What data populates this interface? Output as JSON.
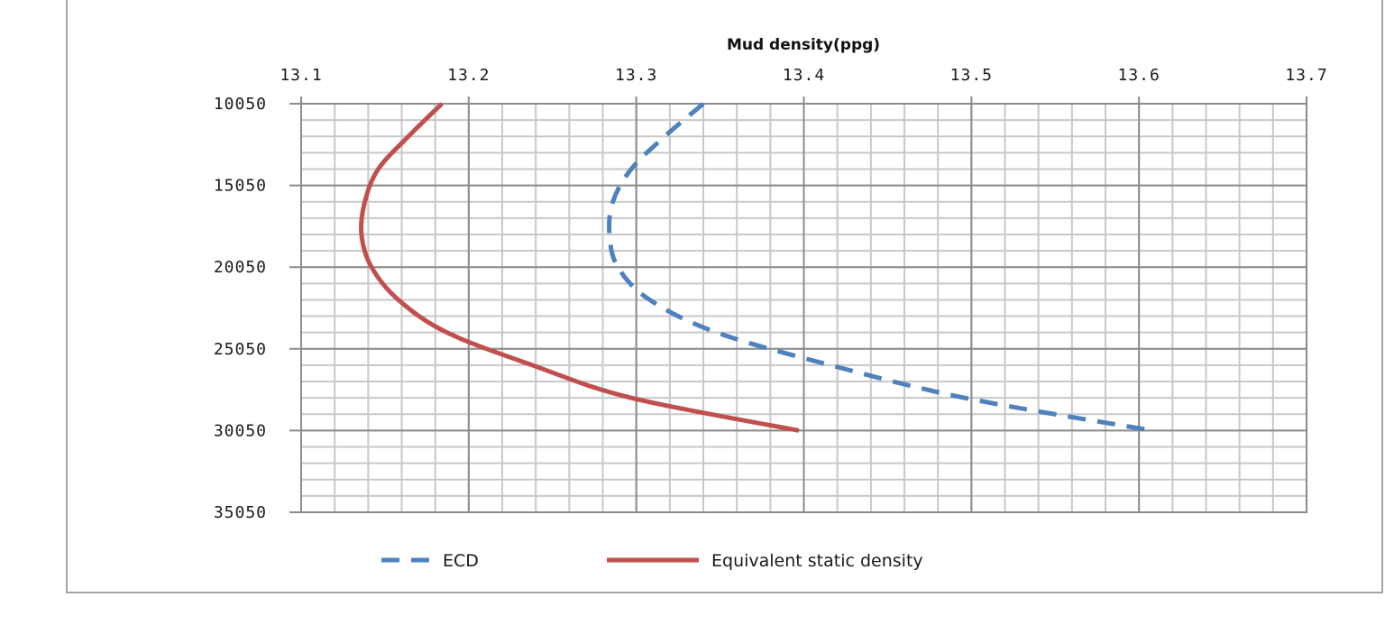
{
  "chart_data": {
    "type": "line",
    "title": "",
    "xlabel": "Mud density(ppg)",
    "ylabel": "",
    "x_axis_position": "top",
    "y_axis_inverted": true,
    "xlim": [
      13.1,
      13.7
    ],
    "ylim": [
      10050,
      35050
    ],
    "x_ticks": [
      "13.1",
      "13.2",
      "13.3",
      "13.4",
      "13.5",
      "13.6",
      "13.7"
    ],
    "x_tick_values": [
      13.1,
      13.2,
      13.3,
      13.4,
      13.5,
      13.6,
      13.7
    ],
    "x_minor_step": 0.02,
    "y_ticks": [
      "10050",
      "15050",
      "20050",
      "25050",
      "30050",
      "35050"
    ],
    "y_tick_values": [
      10050,
      15050,
      20050,
      25050,
      30050,
      35050
    ],
    "y_minor_step": 1000,
    "grid": true,
    "legend_position": "bottom",
    "depth": [
      10050,
      12050,
      14050,
      16050,
      18050,
      20050,
      22050,
      24050,
      26050,
      28050,
      30050
    ],
    "series": [
      {
        "name": "ECD",
        "color": "#4f81bd",
        "style": "dashed",
        "values": [
          13.34,
          13.317,
          13.297,
          13.286,
          13.284,
          13.289,
          13.308,
          13.348,
          13.416,
          13.496,
          13.608
        ]
      },
      {
        "name": "Equivalent static density",
        "color": "#c0504d",
        "style": "solid",
        "values": [
          13.184,
          13.164,
          13.146,
          13.138,
          13.136,
          13.142,
          13.158,
          13.187,
          13.238,
          13.297,
          13.397
        ]
      }
    ]
  },
  "legend": {
    "items": [
      {
        "label": "ECD"
      },
      {
        "label": "Equivalent static density"
      }
    ]
  }
}
